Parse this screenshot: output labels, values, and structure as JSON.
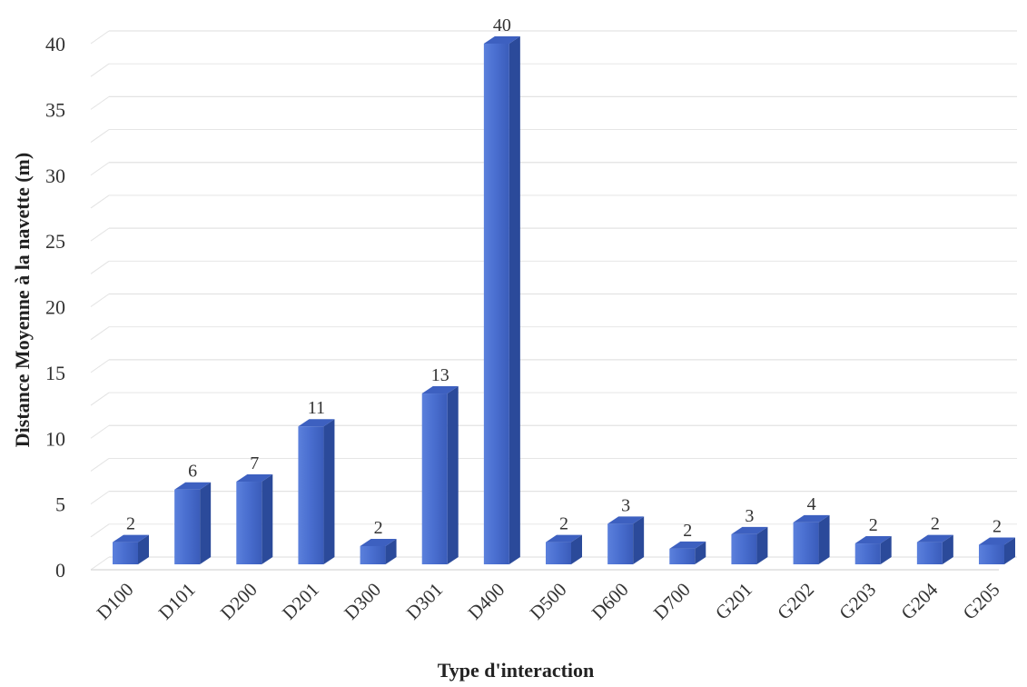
{
  "chart_data": {
    "type": "bar",
    "title": "",
    "xlabel": "Type d'interaction",
    "ylabel": "Distance Moyenne à la navette (m)",
    "ylim": [
      0,
      40
    ],
    "yticks": [
      0,
      5,
      10,
      15,
      20,
      25,
      30,
      35,
      40
    ],
    "grid": true,
    "categories": [
      "D100",
      "D101",
      "D200",
      "D201",
      "D300",
      "D301",
      "D400",
      "D500",
      "D600",
      "D700",
      "G201",
      "G202",
      "G203",
      "G204",
      "G205"
    ],
    "values": [
      2.1,
      6.1,
      6.7,
      10.9,
      1.8,
      13.4,
      40,
      2.1,
      3.5,
      1.6,
      2.7,
      3.6,
      2.0,
      2.1,
      1.9
    ],
    "labels": [
      "2",
      "6",
      "7",
      "11",
      "2",
      "13",
      "40",
      "2",
      "3",
      "2",
      "3",
      "4",
      "2",
      "2",
      "2"
    ],
    "colors": {
      "front": "#4a6fd0",
      "side": "#2b4a9a",
      "top": "#3d60c0",
      "grid": "#e3e3e3"
    }
  }
}
